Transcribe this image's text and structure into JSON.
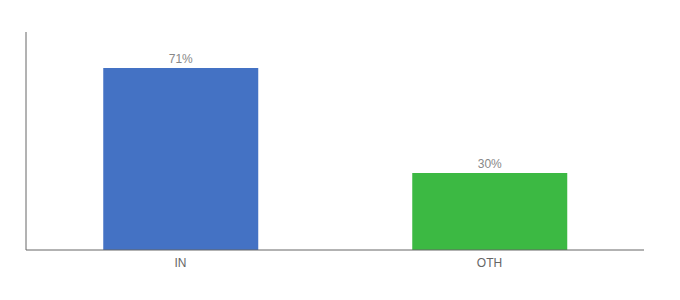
{
  "chart_data": {
    "type": "bar",
    "categories": [
      "IN",
      "OTH"
    ],
    "values": [
      71,
      30
    ],
    "value_labels": [
      "71%",
      "30%"
    ],
    "data_labels": true,
    "colors": [
      "#4472C4",
      "#3CB943"
    ],
    "ylim": [
      0,
      85
    ],
    "yticks": [],
    "tick_labels": "x",
    "grid": false
  }
}
